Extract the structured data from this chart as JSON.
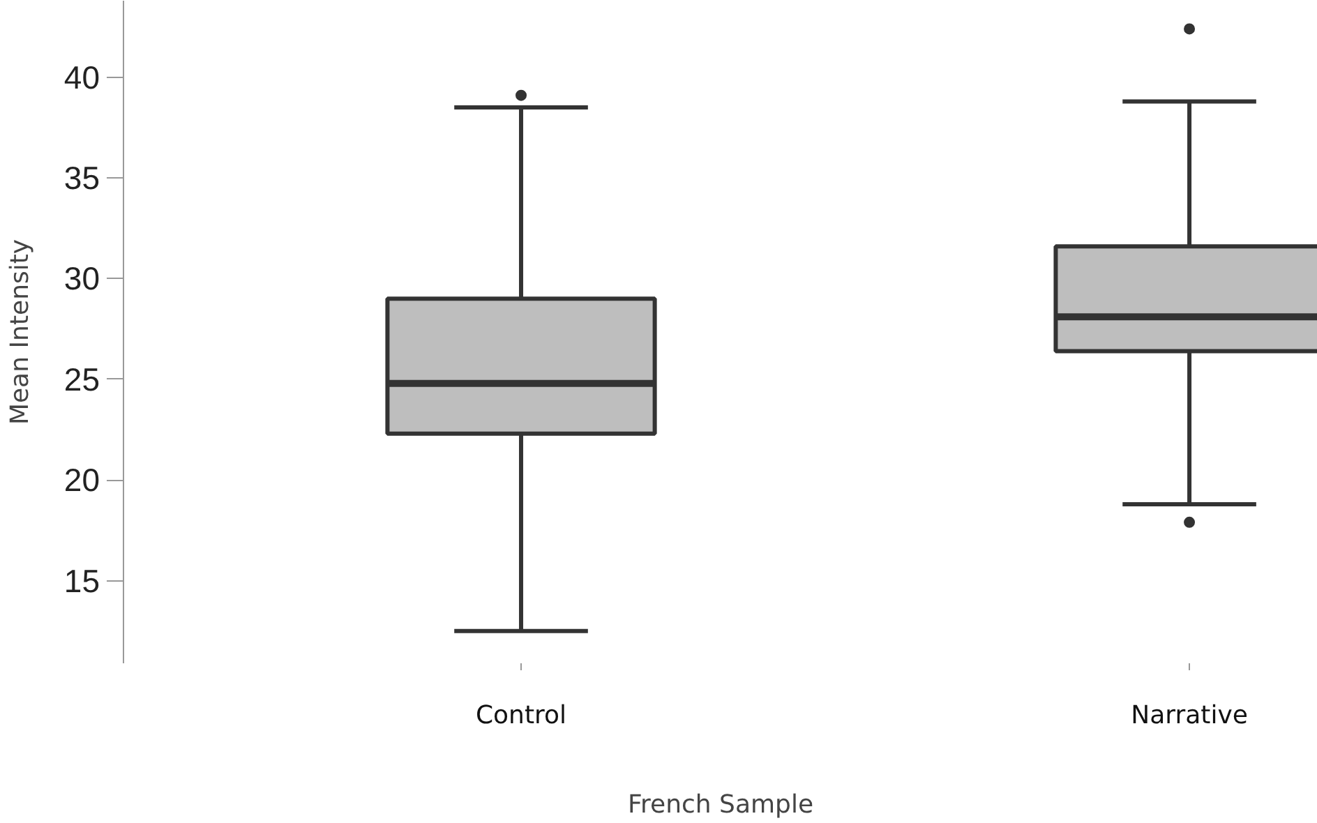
{
  "chart_data": {
    "type": "box",
    "xlabel": "French Sample",
    "ylabel": "Mean Intensity",
    "categories": [
      "Control",
      "Narrative"
    ],
    "series": [
      {
        "color": "#bebebe",
        "boxes": [
          {
            "low": 12.5,
            "q1": 22.3,
            "median": 24.8,
            "q3": 29.0,
            "high": 38.5,
            "outliers": [
              39.1
            ]
          },
          {
            "low": 18.8,
            "q1": 26.4,
            "median": 28.1,
            "q3": 31.6,
            "high": 38.8,
            "outliers": [
              42.4,
              17.9
            ]
          }
        ]
      }
    ],
    "ylim": [
      10.9,
      43.8
    ],
    "yticks": [
      15,
      20,
      25,
      30,
      35,
      40
    ],
    "grid": false
  }
}
